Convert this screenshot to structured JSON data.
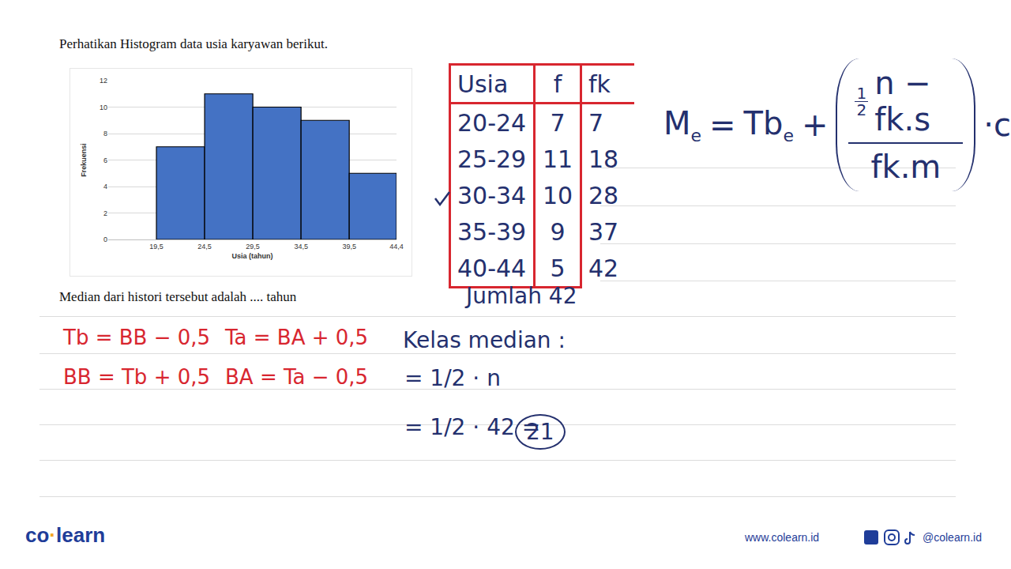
{
  "question": "Perhatikan Histogram data usia karyawan berikut.",
  "chart_data": {
    "type": "histogram",
    "bins": [
      19.5,
      24.5,
      29.5,
      34.5,
      39.5,
      44.4
    ],
    "values": [
      7,
      11,
      10,
      9,
      5
    ],
    "color": "#4472c4",
    "x_label": "Usia (tahun)",
    "y_label": "Frekuensi",
    "xlim": [
      14.5,
      44.4
    ],
    "xticks": [
      {
        "value": 19.5,
        "label": "19,5"
      },
      {
        "value": 24.5,
        "label": "24,5"
      },
      {
        "value": 29.5,
        "label": "29,5"
      },
      {
        "value": 34.5,
        "label": "34,5"
      },
      {
        "value": 39.5,
        "label": "39,5"
      },
      {
        "value": 44.4,
        "label": "44,4"
      }
    ],
    "ylim": [
      0,
      12
    ],
    "yticks": [
      0,
      2,
      4,
      6,
      8,
      10,
      12
    ],
    "grid": true
  },
  "prompt": "Median dari histori tersebut adalah .... tahun",
  "table": {
    "header": [
      "Usia",
      "f",
      "fk"
    ],
    "rows": [
      [
        "20-24",
        "7",
        "7"
      ],
      [
        "25-29",
        "11",
        "18"
      ],
      [
        "30-34",
        "10",
        "28"
      ],
      [
        "35-39",
        "9",
        "37"
      ],
      [
        "40-44",
        "5",
        "42"
      ]
    ],
    "checked_row": 2,
    "total": [
      "Jumlah",
      "42"
    ]
  },
  "formula": [
    {
      "text": "M",
      "sub": "e"
    },
    {
      "text": "="
    },
    {
      "text": "Tb",
      "sub": "e"
    },
    {
      "text": "+"
    },
    {
      "paren": {
        "num": [
          {
            "small_frac": [
              "1",
              "2"
            ]
          },
          {
            "text": "n − fk.s"
          }
        ],
        "den": [
          {
            "text": "fk.m"
          }
        ]
      }
    },
    {
      "text": "·c"
    }
  ],
  "notes": [
    [
      "Tb = BB − 0,5",
      "Ta = BA + 0,5"
    ],
    [
      "BB = Tb + 0,5",
      "BA = Ta − 0,5"
    ]
  ],
  "median_class": {
    "title": "Kelas median :",
    "steps": [
      "= 1/2 · n",
      "= 1/2 · 42 ="
    ],
    "result": "21"
  },
  "footer": {
    "logo": [
      "co",
      "learn"
    ],
    "url": "www.colearn.id",
    "handle": "@colearn.id"
  }
}
